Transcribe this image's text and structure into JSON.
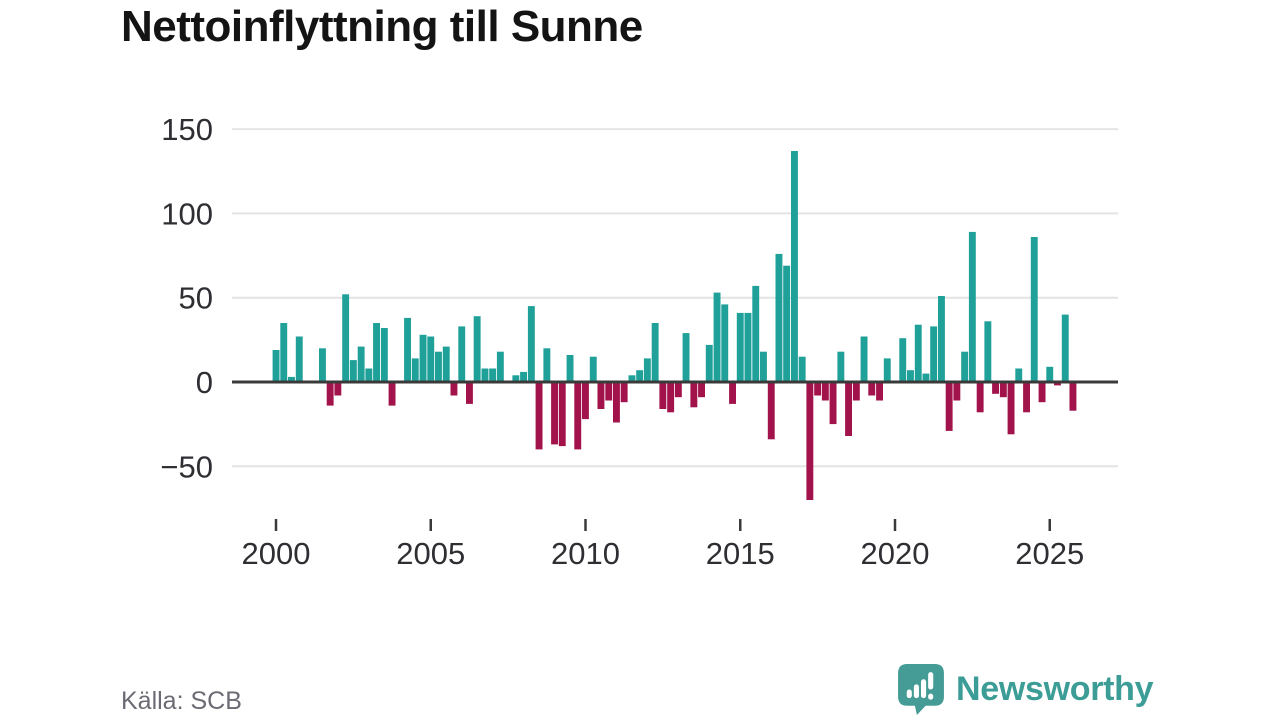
{
  "title": "Nettoinflyttning till Sunne",
  "source": "Källa: SCB",
  "brand": {
    "name": "Newsworthy",
    "color": "#3c9d96"
  },
  "colors": {
    "positive": "#1FA098",
    "negative": "#A2124B",
    "axis": "#3a3a3a",
    "grid": "#e4e4e4",
    "tick_text": "#2f2f33",
    "title_text": "#141414",
    "source_text": "#6b6b74"
  },
  "chart_data": {
    "type": "bar",
    "title": "Nettoinflyttning till Sunne",
    "xlabel": "",
    "ylabel": "",
    "frequency": "quarterly",
    "x_start": "2000 Q1",
    "x_end": "2025 Q4",
    "values": [
      19,
      35,
      3,
      27,
      0,
      0,
      20,
      -14,
      -8,
      52,
      13,
      21,
      8,
      35,
      32,
      -14,
      0,
      38,
      14,
      28,
      27,
      18,
      21,
      -8,
      33,
      -13,
      39,
      8,
      8,
      18,
      0,
      4,
      6,
      45,
      -40,
      20,
      -37,
      -38,
      16,
      -40,
      -22,
      15,
      -16,
      -11,
      -24,
      -12,
      4,
      7,
      14,
      35,
      -16,
      -18,
      -9,
      29,
      -15,
      -9,
      22,
      53,
      46,
      -13,
      41,
      41,
      57,
      18,
      -34,
      76,
      69,
      137,
      15,
      -70,
      -8,
      -11,
      -25,
      18,
      -32,
      -11,
      27,
      -8,
      -11,
      14,
      0,
      26,
      7,
      34,
      5,
      33,
      51,
      -29,
      -11,
      18,
      89,
      -18,
      36,
      -7,
      -9,
      -31,
      8,
      -18,
      86,
      -12,
      9,
      -2,
      40,
      -17
    ],
    "x_tick_labels": [
      "2000",
      "2005",
      "2010",
      "2015",
      "2020",
      "2025"
    ],
    "y_tick_values": [
      150,
      100,
      50,
      0,
      -50
    ],
    "y_tick_labels": [
      "150",
      "100",
      "50",
      "0",
      "−50"
    ],
    "ylim": [
      -75,
      160
    ],
    "grid": true,
    "legend": false,
    "positive_color": "#1FA098",
    "negative_color": "#A2124B"
  }
}
